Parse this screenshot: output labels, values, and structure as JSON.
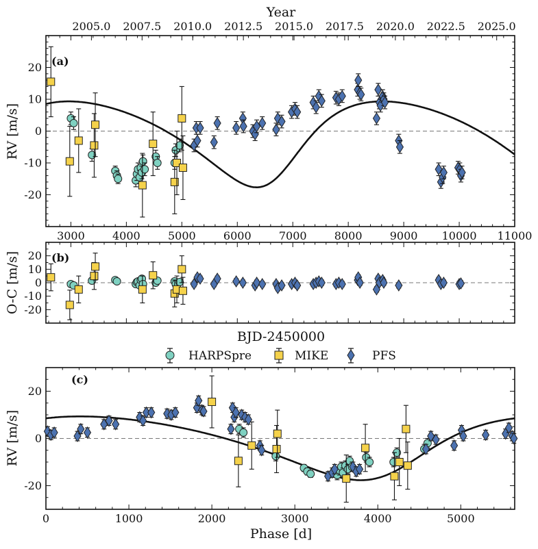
{
  "chart_data": [
    {
      "panel": "(a)",
      "type": "scatter",
      "top_axis_label": "Year",
      "top_ticks": [
        "2005.0",
        "2007.5",
        "2010.0",
        "2012.5",
        "2015.0",
        "2017.5",
        "2020.0",
        "2022.5",
        "2025.0"
      ],
      "ylabel": "RV [m/s]",
      "xlim": [
        2550,
        11000
      ],
      "ylim": [
        -30,
        30
      ],
      "xticks": [
        3000,
        4000,
        5000,
        6000,
        7000,
        8000,
        9000,
        10000,
        11000
      ],
      "yticks": [
        -20,
        -10,
        0,
        10,
        20
      ],
      "series": [
        {
          "name": "HARPSpre",
          "color": "#7fd1c1",
          "marker": "circle",
          "x": [
            3000,
            3050,
            3380,
            3800,
            3830,
            3850,
            4170,
            4190,
            4210,
            4240,
            4260,
            4280,
            4300,
            4330,
            4530,
            4560,
            4870,
            4890,
            4960
          ],
          "y": [
            4,
            2.5,
            -7.5,
            -12.5,
            -14,
            -15,
            -15.5,
            -13.5,
            -12,
            -14.5,
            -11.5,
            -13,
            -9.5,
            -12,
            -8,
            -10,
            -10,
            -6,
            -4.5
          ],
          "err": [
            2,
            2,
            2,
            1.5,
            1.5,
            1.5,
            2,
            2,
            2,
            2,
            2,
            2,
            2,
            2,
            2,
            2,
            2,
            2,
            2
          ]
        },
        {
          "name": "MIKE",
          "color": "#f5d24b",
          "marker": "square",
          "x": [
            2640,
            2980,
            3140,
            3420,
            3440,
            4290,
            4480,
            4870,
            4910,
            5000,
            5020
          ],
          "y": [
            15.5,
            -9.5,
            -3,
            -4.5,
            2,
            -17,
            -4,
            -16,
            -10,
            4,
            -11.5
          ],
          "err": [
            11,
            11,
            10,
            10,
            10,
            10,
            10,
            10,
            10,
            10,
            10
          ]
        },
        {
          "name": "PFS",
          "color": "#4c72b0",
          "marker": "diamond",
          "x": [
            5220,
            5260,
            5280,
            5330,
            5580,
            5640,
            5980,
            6100,
            6110,
            6280,
            6320,
            6350,
            6450,
            6700,
            6730,
            6800,
            6980,
            7040,
            7080,
            7370,
            7420,
            7470,
            7520,
            7780,
            7830,
            7890,
            8170,
            8180,
            8210,
            8230,
            8510,
            8540,
            8560,
            8580,
            8620,
            8640,
            8660,
            8910,
            8930,
            9630,
            9670,
            9700,
            9720,
            9980,
            10010,
            10030,
            10050
          ],
          "y": [
            -4.5,
            1,
            -3,
            1,
            -3.5,
            2.5,
            1,
            4,
            1.5,
            0,
            -1,
            1.5,
            2.5,
            0.5,
            4,
            3,
            6,
            7,
            6,
            9,
            7.5,
            11,
            9.5,
            10.5,
            10,
            11,
            13,
            16,
            12,
            11.5,
            4,
            13,
            9,
            8,
            11,
            10,
            9,
            -3,
            -5,
            -12,
            -16,
            -14.5,
            -13,
            -11.5,
            -12,
            -14,
            -13
          ],
          "err": [
            2,
            2,
            2,
            2,
            2,
            2,
            2,
            2,
            2,
            2,
            2,
            2,
            2,
            2,
            2,
            2,
            2,
            2,
            2,
            2,
            2,
            2,
            2,
            2,
            2,
            2,
            2,
            2,
            2,
            2,
            2,
            2,
            2,
            2,
            2,
            2,
            2,
            2,
            2,
            2,
            2,
            2,
            2,
            2,
            2,
            2,
            2
          ]
        }
      ]
    },
    {
      "panel": "(b)",
      "type": "scatter",
      "xlabel": "BJD-2450000",
      "ylabel": "O-C [m/s]",
      "xlim": [
        2550,
        11000
      ],
      "ylim": [
        -30,
        30
      ],
      "yticks": [
        -20,
        -10,
        0,
        10,
        20
      ],
      "series": [
        {
          "name": "HARPSpre",
          "color": "#7fd1c1",
          "marker": "circle",
          "x": [
            3000,
            3050,
            3380,
            3800,
            3830,
            4170,
            4190,
            4210,
            4240,
            4260,
            4280,
            4300,
            4530,
            4560,
            4870,
            4890,
            4960
          ],
          "y": [
            -1,
            -2,
            1.5,
            2,
            1,
            -1,
            0.5,
            1,
            -2,
            2,
            3,
            -1,
            0,
            1.5,
            1,
            -1,
            0.5
          ],
          "err": [
            2,
            2,
            2,
            1.5,
            1.5,
            2,
            2,
            2,
            2,
            2,
            2,
            2,
            2,
            2,
            2,
            2,
            2
          ]
        },
        {
          "name": "MIKE",
          "color": "#f5d24b",
          "marker": "square",
          "x": [
            2640,
            2980,
            3140,
            3420,
            3440,
            4290,
            4480,
            4870,
            4910,
            5000,
            5020
          ],
          "y": [
            4,
            -16.5,
            -5,
            5,
            12,
            -5,
            5.5,
            -8,
            -5,
            10,
            -6
          ],
          "err": [
            10,
            11,
            10,
            10,
            10,
            10,
            10,
            10,
            10,
            10,
            10
          ]
        },
        {
          "name": "PFS",
          "color": "#4c72b0",
          "marker": "diamond",
          "x": [
            5220,
            5280,
            5330,
            5580,
            5640,
            5980,
            6100,
            6320,
            6350,
            6450,
            6700,
            6730,
            6800,
            6980,
            7040,
            7080,
            7370,
            7420,
            7470,
            7520,
            7780,
            7830,
            7890,
            8170,
            8180,
            8210,
            8510,
            8540,
            8560,
            8620,
            8640,
            8910,
            9630,
            9670,
            9720,
            10000,
            10030
          ],
          "y": [
            -1,
            4,
            3,
            -1,
            3,
            1,
            0,
            -2,
            0,
            -1,
            -1,
            -4,
            -2,
            -1,
            0,
            -2,
            -1,
            0,
            1,
            0,
            -1,
            0,
            -1,
            2,
            4,
            0,
            -5,
            3,
            0,
            2,
            0,
            -2,
            2,
            -1,
            0,
            -1,
            -0.5
          ],
          "err": [
            2,
            2,
            2,
            2,
            2,
            2,
            2,
            2,
            2,
            2,
            2,
            2,
            2,
            2,
            2,
            2,
            2,
            2,
            2,
            2,
            2,
            2,
            2,
            2,
            2,
            2,
            2,
            2,
            2,
            2,
            2,
            2,
            2,
            2,
            2,
            2,
            2
          ]
        }
      ]
    },
    {
      "panel": "(c)",
      "type": "scatter",
      "xlabel": "Phase [d]",
      "ylabel": "RV [m/s]",
      "xlim": [
        0,
        5650
      ],
      "ylim": [
        -30,
        30
      ],
      "xticks": [
        0,
        1000,
        2000,
        3000,
        4000,
        5000
      ],
      "yticks": [
        -20,
        0,
        20
      ],
      "series": [
        {
          "name": "HARPSpre",
          "color": "#7fd1c1",
          "marker": "circle",
          "x": [
            2330,
            2380,
            2770,
            3110,
            3150,
            3190,
            3510,
            3540,
            3560,
            3580,
            3610,
            3640,
            3660,
            3690,
            3860,
            3900,
            4190,
            4230,
            4560,
            4600
          ],
          "y": [
            4,
            2.5,
            -7.5,
            -12.5,
            -14,
            -15,
            -15.5,
            -13.5,
            -12,
            -14.5,
            -11.5,
            -13,
            -9.5,
            -12,
            -8,
            -10,
            -10,
            -6,
            -4.5,
            -2
          ],
          "err": [
            2,
            2,
            2,
            1.5,
            1.5,
            1.5,
            2,
            2,
            2,
            2,
            2,
            2,
            2,
            2,
            2,
            2,
            2,
            2,
            2,
            2
          ]
        },
        {
          "name": "MIKE",
          "color": "#f5d24b",
          "marker": "square",
          "x": [
            2000,
            2320,
            2480,
            2780,
            2790,
            3620,
            3850,
            4200,
            4260,
            4340,
            4360
          ],
          "y": [
            15.5,
            -9.5,
            -3,
            -4.5,
            2,
            -17,
            -4,
            -16,
            -10,
            4,
            -11.5
          ],
          "err": [
            11,
            11,
            10,
            10,
            10,
            10,
            10,
            10,
            10,
            10,
            10
          ]
        },
        {
          "name": "PFS",
          "color": "#4c72b0",
          "marker": "diamond",
          "x": [
            20,
            60,
            100,
            380,
            420,
            500,
            700,
            760,
            840,
            1130,
            1170,
            1210,
            1270,
            1460,
            1510,
            1560,
            1820,
            1840,
            1880,
            1900,
            2230,
            2250,
            2270,
            2290,
            2360,
            2400,
            2440,
            2580,
            2600,
            3400,
            3450,
            3480,
            3700,
            3740,
            3780,
            4580,
            4640,
            4700,
            4920,
            5010,
            5030,
            5300,
            5540,
            5580,
            5620,
            5640
          ],
          "y": [
            3,
            1.5,
            2.5,
            1,
            4,
            2.5,
            6,
            7.5,
            6,
            9,
            7.5,
            11,
            11,
            10.5,
            10,
            11,
            13,
            16,
            12,
            11.5,
            4,
            13,
            9,
            11,
            10,
            9,
            8,
            -3,
            -5,
            -16,
            -14.5,
            -13,
            -12,
            -14,
            -13,
            -4.5,
            1,
            -0.5,
            -3,
            3.5,
            1,
            1.5,
            2,
            4.5,
            1,
            0
          ],
          "err": [
            2,
            2,
            2,
            2,
            2,
            2,
            2,
            2,
            2,
            2,
            2,
            2,
            2,
            2,
            2,
            2,
            2,
            2,
            2,
            2,
            2,
            2,
            2,
            2,
            2,
            2,
            2,
            2,
            2,
            2,
            2,
            2,
            2,
            2,
            2,
            2,
            2,
            2,
            2,
            2,
            2,
            2,
            2,
            2,
            2,
            2
          ]
        }
      ]
    }
  ],
  "legend": [
    "HARPSpre",
    "MIKE",
    "PFS"
  ]
}
